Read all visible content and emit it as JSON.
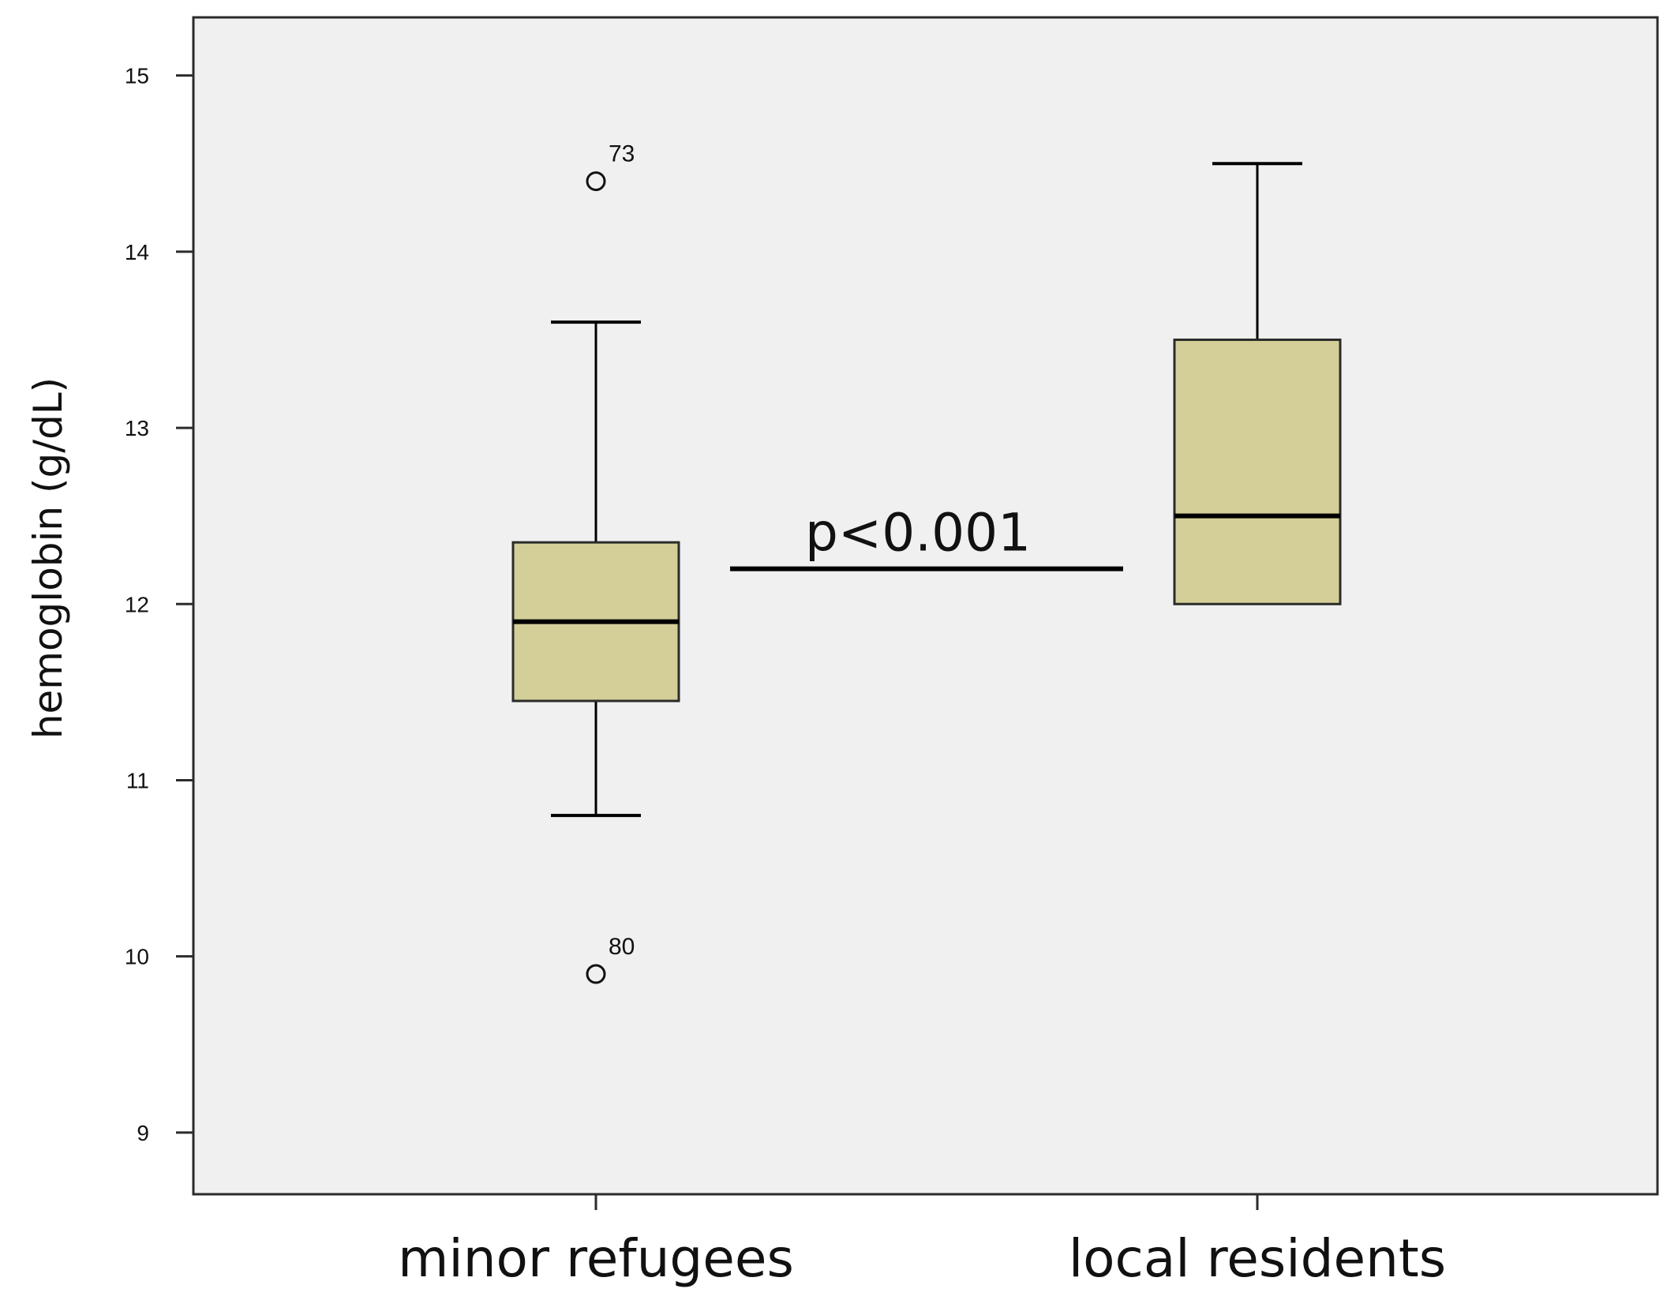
{
  "chart_data": {
    "type": "box",
    "ylabel": "hemoglobin (g/dL)",
    "xlabel": "",
    "ylim": [
      8.65,
      15.33
    ],
    "yticks": [
      9,
      10,
      11,
      12,
      13,
      14,
      15
    ],
    "categories": [
      "minor refugees",
      "local residents"
    ],
    "boxes": [
      {
        "category": "minor refugees",
        "whisker_low": 10.8,
        "q1": 11.45,
        "median": 11.9,
        "q3": 12.35,
        "whisker_high": 13.6,
        "outliers": [
          {
            "value": 14.4,
            "label": "73"
          },
          {
            "value": 9.9,
            "label": "80"
          }
        ]
      },
      {
        "category": "local residents",
        "whisker_low": 12.0,
        "q1": 12.0,
        "median": 12.5,
        "q3": 13.5,
        "whisker_high": 14.5,
        "outliers": []
      }
    ],
    "significance": {
      "label": "p<0.001",
      "y": 12.2
    },
    "colors": {
      "box_fill": "#d4cf98",
      "plot_background": "#f0f0f0",
      "line": "#000000"
    }
  }
}
